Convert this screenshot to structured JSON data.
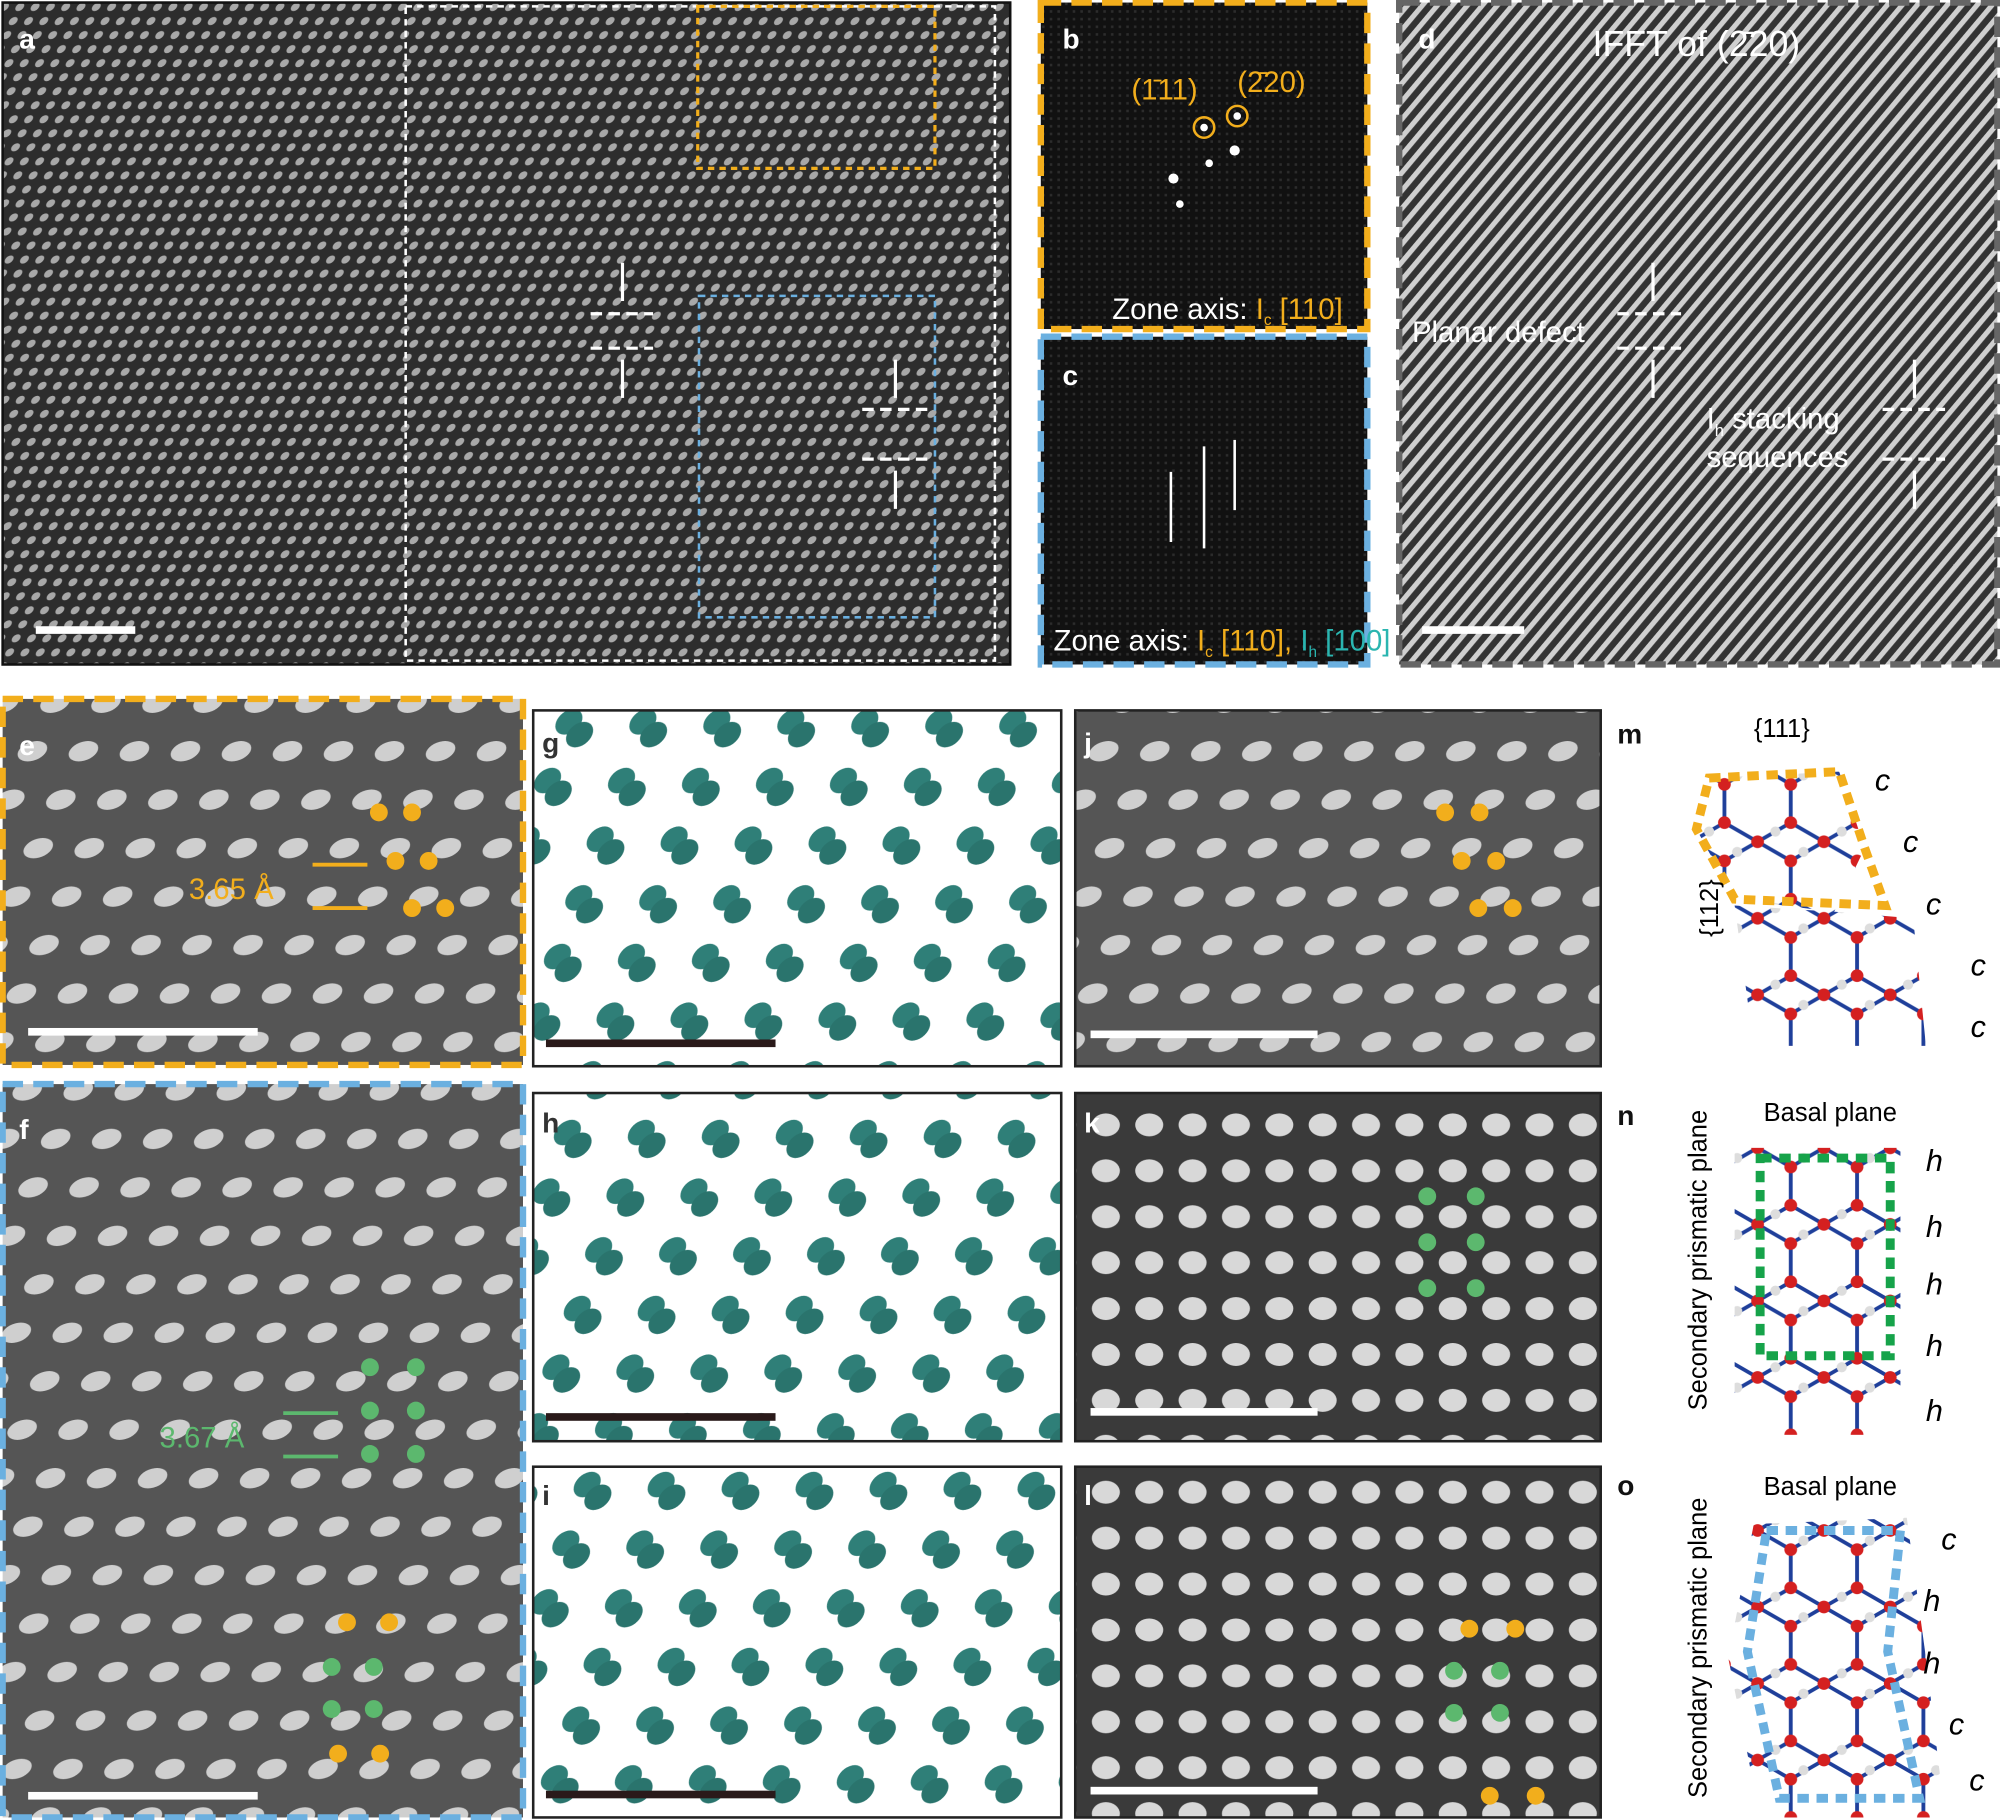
{
  "panels": {
    "a": {
      "letter": "a"
    },
    "b": {
      "letter": "b",
      "spots": [
        "(1̄11)",
        "(2̄20)"
      ],
      "zone_axis": {
        "label": "Zone axis:",
        "phase": "I",
        "subscript": "c",
        "direction": "[110]"
      }
    },
    "c": {
      "letter": "c",
      "zone_axis": {
        "label": "Zone axis:",
        "phases": [
          {
            "phase": "I",
            "subscript": "c",
            "direction": "[110],"
          },
          {
            "phase": "I",
            "subscript": "h",
            "direction": "[100]"
          }
        ]
      }
    },
    "d": {
      "letter": "d",
      "title": "IFFT of (2̄20)",
      "planar_defect": "Planar defect",
      "stacking": {
        "phase": "I",
        "subscript": "h",
        "line1": "stacking",
        "line2": "sequences"
      }
    },
    "e": {
      "letter": "e",
      "spacing": "3.65 Å"
    },
    "f": {
      "letter": "f",
      "spacing": "3.67 Å"
    },
    "g": {
      "letter": "g"
    },
    "h": {
      "letter": "h"
    },
    "i": {
      "letter": "i"
    },
    "j": {
      "letter": "j"
    },
    "k": {
      "letter": "k"
    },
    "l": {
      "letter": "l"
    },
    "m": {
      "letter": "m",
      "family_top": "{111}",
      "family_side": "{112}",
      "stacking": [
        "c",
        "c",
        "c",
        "c",
        "c"
      ]
    },
    "n": {
      "letter": "n",
      "title": "Basal plane",
      "side": "Secondary prismatic plane",
      "stacking": [
        "h",
        "h",
        "h",
        "h",
        "h"
      ]
    },
    "o": {
      "letter": "o",
      "title": "Basal plane",
      "side": "Secondary prismatic plane",
      "stacking": [
        "c",
        "h",
        "h",
        "c",
        "c"
      ]
    }
  }
}
